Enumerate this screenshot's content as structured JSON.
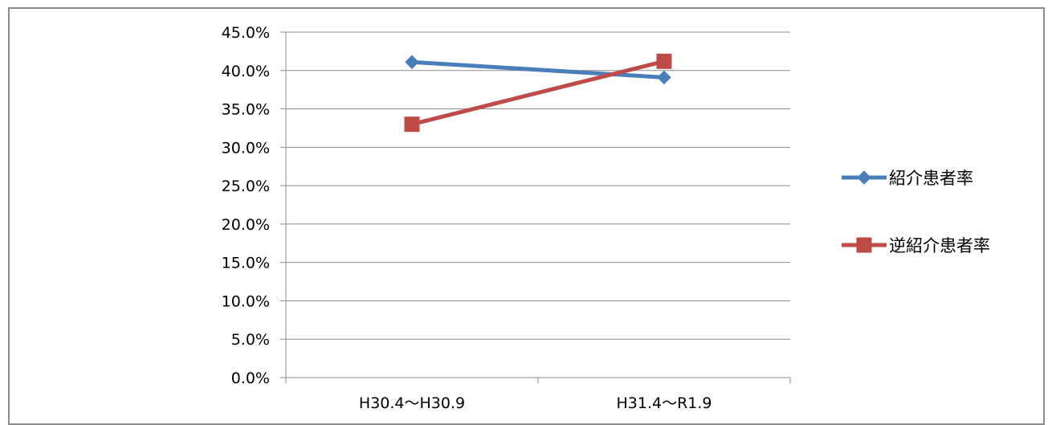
{
  "chart_data": {
    "type": "line",
    "categories": [
      "H30.4～H30.9",
      "H31.4～R1.9"
    ],
    "series": [
      {
        "name": "紹介患者率",
        "values": [
          41.1,
          39.1
        ],
        "color": "#4a7ebb",
        "marker": "diamond"
      },
      {
        "name": "逆紹介患者率",
        "values": [
          33.0,
          41.2
        ],
        "color": "#be4b48",
        "marker": "square"
      }
    ],
    "ylim": [
      0,
      45
    ],
    "yticks": [
      "0.0%",
      "5.0%",
      "10.0%",
      "15.0%",
      "20.0%",
      "25.0%",
      "30.0%",
      "35.0%",
      "40.0%",
      "45.0%"
    ],
    "ytick_values": [
      0,
      5,
      10,
      15,
      20,
      25,
      30,
      35,
      40,
      45
    ],
    "grid": true,
    "gridColor": "#8c8c8c",
    "legend": "right"
  }
}
